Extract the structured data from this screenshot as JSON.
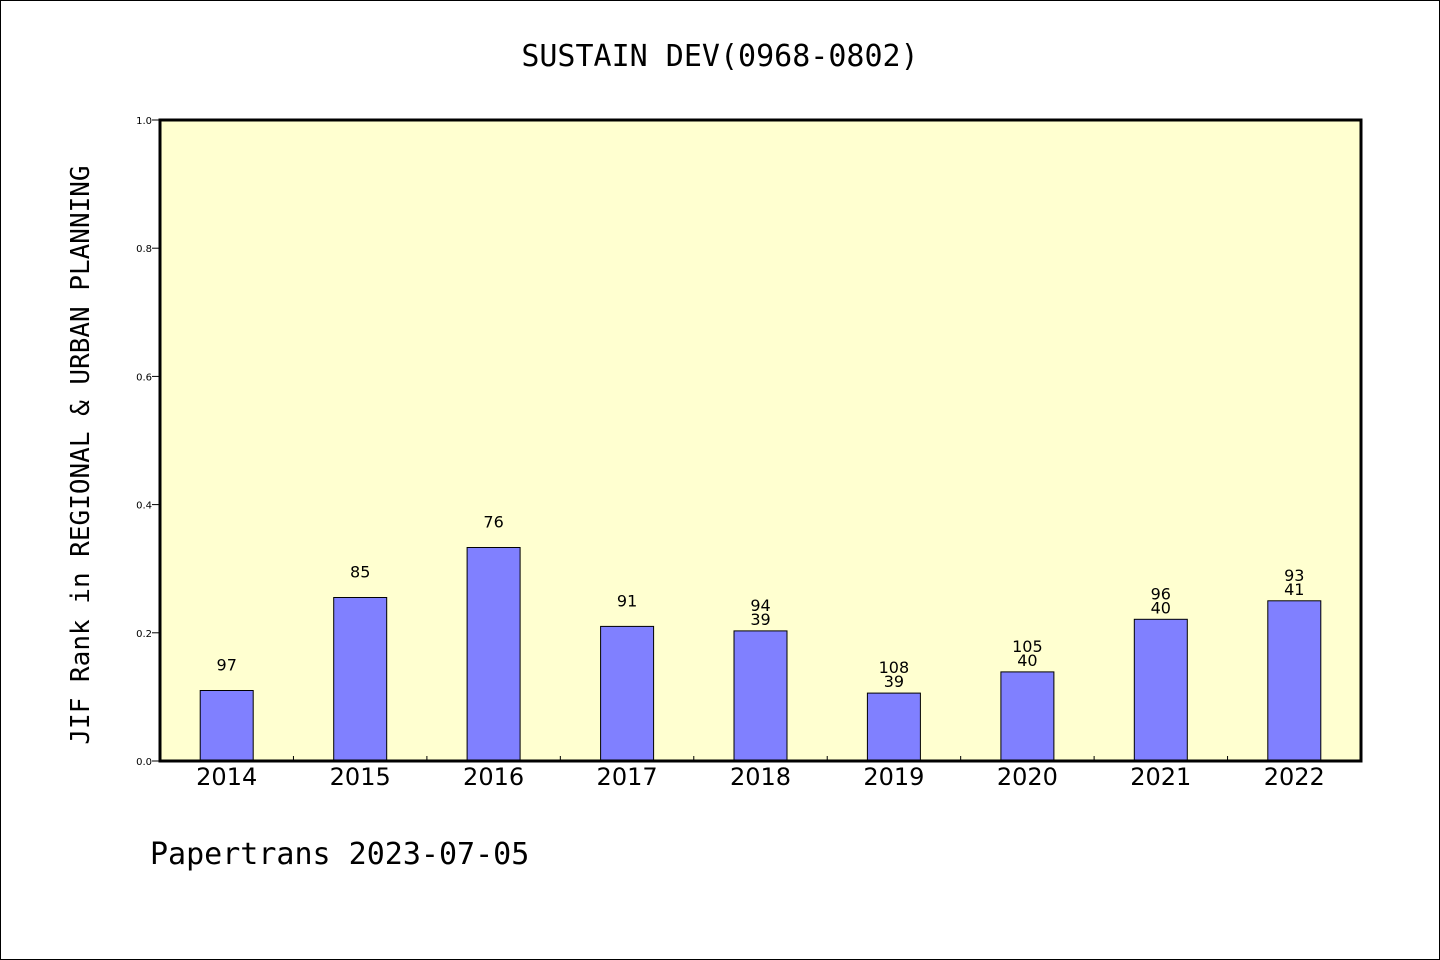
{
  "chart_data": {
    "type": "bar",
    "title": "SUSTAIN DEV(0968-0802)",
    "xlabel": "",
    "ylabel": "JIF Rank in REGIONAL & URBAN PLANNING",
    "ylim": [
      0,
      1.0
    ],
    "yticks": [
      "0.0",
      "0.2",
      "0.4",
      "0.6",
      "0.8",
      "1.0"
    ],
    "categories": [
      "2014",
      "2015",
      "2016",
      "2017",
      "2018",
      "2019",
      "2020",
      "2021",
      "2022"
    ],
    "values": [
      0.11,
      0.255,
      0.333,
      0.21,
      0.203,
      0.106,
      0.139,
      0.221,
      0.25
    ],
    "labels": [
      [
        "97"
      ],
      [
        "85"
      ],
      [
        "76"
      ],
      [
        "91"
      ],
      [
        "94",
        "39"
      ],
      [
        "108",
        "39"
      ],
      [
        "105",
        "40"
      ],
      [
        "96",
        "40"
      ],
      [
        "93",
        "41"
      ]
    ],
    "plot_background": "#ffffd0",
    "bar_color": "#8080ff",
    "grid": false
  },
  "footer": "Papertrans 2023-07-05"
}
